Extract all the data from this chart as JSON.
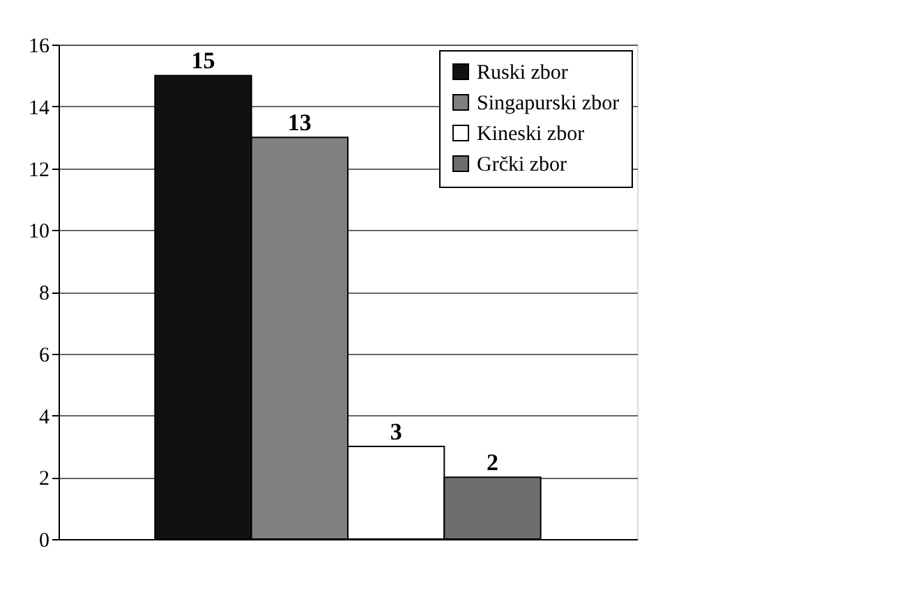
{
  "chart_data": {
    "type": "bar",
    "categories": [
      null
    ],
    "series": [
      {
        "name": "Ruski zbor",
        "color": "#111111",
        "values": [
          15
        ]
      },
      {
        "name": "Singapurski zbor",
        "color": "#808080",
        "values": [
          13
        ]
      },
      {
        "name": "Kineski zbor",
        "color": "#ffffff",
        "values": [
          3
        ]
      },
      {
        "name": "Grčki zbor",
        "color": "#6e6e6e",
        "values": [
          2
        ]
      }
    ],
    "ylim": [
      0,
      16
    ],
    "yticks": [
      0,
      2,
      4,
      6,
      8,
      10,
      12,
      14,
      16
    ],
    "grid": "y",
    "legend": "top right",
    "data_labels": true
  }
}
